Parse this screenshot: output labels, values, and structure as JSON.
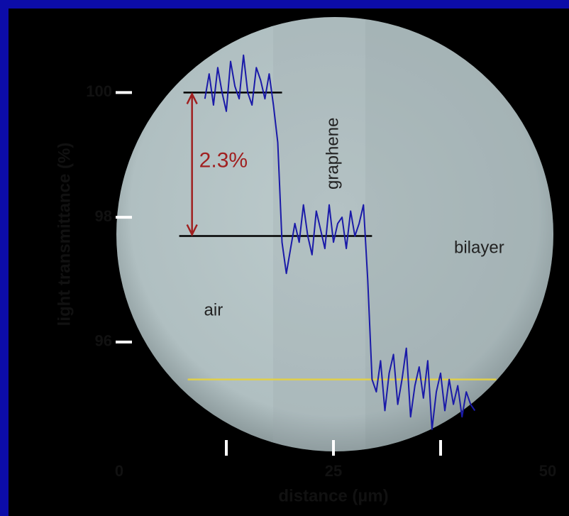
{
  "chart_data": {
    "type": "line",
    "x_label": "distance (µm)",
    "y_label": "light transmittance (%)",
    "x": [
      10,
      10.5,
      11,
      11.5,
      12,
      12.5,
      13,
      13.5,
      14,
      14.5,
      15,
      15.5,
      16,
      16.5,
      17,
      17.5,
      18,
      18.5,
      19,
      19.5,
      20,
      20.5,
      21,
      21.5,
      22,
      22.5,
      23,
      23.5,
      24,
      24.5,
      25,
      25.5,
      26,
      26.5,
      27,
      27.5,
      28,
      28.5,
      29,
      29.5,
      30,
      30.5,
      31,
      31.5,
      32,
      32.5,
      33,
      33.5,
      34,
      34.5,
      35,
      35.5,
      36,
      36.5,
      37,
      37.5,
      38,
      38.5,
      39,
      39.5,
      40,
      40.5,
      41,
      41.5
    ],
    "series": [
      {
        "color": "#1a1aa8",
        "values": [
          99.9,
          100.3,
          99.8,
          100.4,
          100.0,
          99.7,
          100.5,
          100.1,
          99.9,
          100.6,
          100.0,
          99.8,
          100.4,
          100.2,
          99.9,
          100.3,
          99.8,
          99.2,
          97.6,
          97.1,
          97.5,
          97.9,
          97.6,
          98.2,
          97.7,
          97.4,
          98.1,
          97.8,
          97.5,
          98.2,
          97.6,
          97.9,
          98.0,
          97.5,
          98.1,
          97.7,
          97.9,
          98.2,
          97.0,
          95.4,
          95.2,
          95.7,
          94.9,
          95.5,
          95.8,
          95.0,
          95.4,
          95.9,
          94.8,
          95.3,
          95.6,
          95.1,
          95.7,
          94.6,
          95.2,
          95.5,
          94.9,
          95.4,
          95.0,
          95.3,
          94.8,
          95.2,
          95.0,
          94.9
        ]
      }
    ],
    "xlim": [
      0,
      50
    ],
    "xticks": [
      0,
      25,
      50
    ],
    "minor_xticks": [
      12.5,
      37.5
    ],
    "ylim": [
      94.2,
      101.2
    ],
    "yticks": [
      96,
      98,
      100
    ],
    "reference_lines": [
      {
        "y": 100,
        "x": [
          7.5,
          19
        ],
        "color": "#000000"
      },
      {
        "y": 97.7,
        "x": [
          7,
          29.5
        ],
        "color": "#000000"
      },
      {
        "y": 95.4,
        "x": [
          8,
          44
        ],
        "color": "#e0cf4a"
      }
    ],
    "arrow": {
      "text": "2.3%",
      "x": 8.5,
      "y": [
        97.7,
        100
      ],
      "color": "#a02020"
    },
    "annotations": [
      {
        "text": "graphene",
        "x": 25,
        "y": 99.6,
        "rotate": true
      },
      {
        "text": "bilayer",
        "x": 42,
        "y": 97.5,
        "rotate": false
      },
      {
        "text": "air",
        "x": 11,
        "y": 96.5,
        "rotate": false
      }
    ]
  }
}
